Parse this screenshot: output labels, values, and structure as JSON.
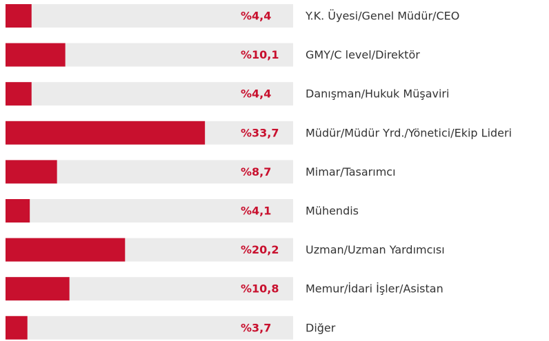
{
  "chart_data": {
    "type": "bar",
    "orientation": "horizontal",
    "categories": [
      "Y.K. Üyesi/Genel Müdür/CEO",
      "GMY/C level/Direktör",
      "Danışman/Hukuk Müşaviri",
      "Müdür/Müdür Yrd./Yönetici/Ekip Lideri",
      "Mimar/Tasarımcı",
      "Mühendis",
      "Uzman/Uzman Yardımcısı",
      "Memur/İdari İşler/Asistan",
      "Diğer"
    ],
    "values": [
      4.4,
      10.1,
      4.4,
      33.7,
      8.7,
      4.1,
      20.2,
      10.8,
      3.7
    ],
    "value_labels": [
      "%4,4",
      "%10,1",
      "%4,4",
      "%33,7",
      "%8,7",
      "%4,1",
      "%20,2",
      "%10,8",
      "%3,7"
    ],
    "color": "#c8102e",
    "track_color": "#ebebeb",
    "label_color": "#c8102e"
  }
}
